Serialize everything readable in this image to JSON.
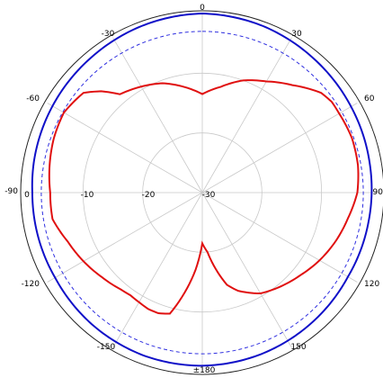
{
  "chart_data": {
    "type": "polar-line",
    "title": "",
    "angle_unit": "deg",
    "angle_ticks": [
      "0",
      "30",
      "60",
      "90",
      "120",
      "150",
      "±180",
      "-150",
      "-120",
      "-90",
      "-60",
      "-30"
    ],
    "radial_ticks": [
      "0",
      "-10",
      "-20",
      "-30"
    ],
    "rlim": [
      -30,
      0
    ],
    "grid": true,
    "series": [
      {
        "color": "#1010c8",
        "style": "solid",
        "angles": [
          0,
          20,
          40,
          60,
          80,
          90,
          100,
          120,
          140,
          160,
          180,
          200,
          220,
          240,
          260,
          270,
          280,
          300,
          320,
          340,
          360
        ],
        "values": [
          0,
          -0.3,
          -0.8,
          -1.2,
          -1.5,
          -1.6,
          -1.7,
          -1.8,
          -1.5,
          -1.2,
          -1.0,
          -1.0,
          -1.2,
          -1.5,
          -1.5,
          -1.5,
          -1.3,
          -1.0,
          -0.7,
          -0.3,
          0
        ]
      },
      {
        "color": "#3030e0",
        "style": "dashed",
        "angles": [
          0,
          90,
          180,
          270,
          360
        ],
        "values": [
          -3,
          -3,
          -3,
          -3,
          -3
        ]
      },
      {
        "color": "#e01010",
        "style": "solid",
        "angles": [
          0,
          10,
          20,
          30,
          40,
          50,
          55,
          60,
          70,
          80,
          90,
          100,
          110,
          120,
          130,
          140,
          150,
          155,
          160,
          165,
          170,
          175,
          180,
          185,
          190,
          195,
          200,
          205,
          210,
          215,
          220,
          230,
          240,
          250,
          260,
          270,
          280,
          290,
          300,
          310,
          315,
          320,
          330,
          340,
          350,
          360
        ],
        "values": [
          -13.5,
          -12,
          -10,
          -8.5,
          -6.5,
          -4,
          -3.5,
          -3.5,
          -3.3,
          -3.5,
          -4,
          -5.2,
          -6.2,
          -7.3,
          -8.5,
          -9.5,
          -10.5,
          -11.5,
          -12.5,
          -14,
          -17,
          -20,
          -21.5,
          -17,
          -13,
          -9,
          -8.5,
          -8.5,
          -8.8,
          -9,
          -8.8,
          -8,
          -7,
          -6,
          -4.5,
          -4.5,
          -4,
          -3.5,
          -3.2,
          -4,
          -6,
          -8.5,
          -9.5,
          -10.5,
          -12,
          -13.5
        ]
      }
    ]
  }
}
